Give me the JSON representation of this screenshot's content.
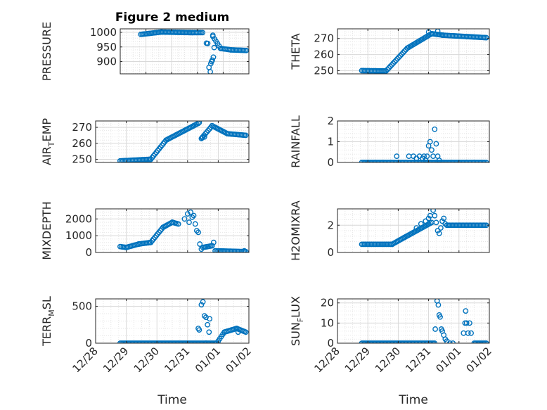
{
  "figure_title": "Figure 2 medium",
  "colors": {
    "marker": "#0072BD",
    "axis": "#262626",
    "grid": "#d9d9d9",
    "minor_grid": "#e6e6e6"
  },
  "chart_data": [
    {
      "id": "pressure",
      "type": "scatter",
      "title": "Figure 2 medium",
      "ylabel": "PRESSURE",
      "ylabel_sub": "",
      "xlabel": "",
      "xlim": [
        0,
        5
      ],
      "ylim": [
        858,
        1012
      ],
      "yticks": [
        900,
        950,
        1000
      ],
      "xticks": [
        0,
        1,
        2,
        3,
        4,
        5
      ],
      "show_xticklabels": false,
      "grid": true,
      "segments": [
        [
          0.8,
          993,
          1.6,
          1001
        ],
        [
          1.6,
          1001,
          2.8,
          999
        ],
        [
          2.8,
          999,
          3.2,
          999
        ],
        [
          3.6,
          986,
          3.9,
          945
        ],
        [
          3.9,
          945,
          4.3,
          940
        ],
        [
          4.3,
          940,
          4.9,
          938
        ]
      ],
      "points": [
        [
          3.35,
          963
        ],
        [
          3.4,
          962
        ],
        [
          3.45,
          880
        ],
        [
          3.5,
          865
        ],
        [
          3.52,
          893
        ],
        [
          3.55,
          900
        ],
        [
          3.58,
          905
        ],
        [
          3.62,
          915
        ],
        [
          3.65,
          948
        ],
        [
          3.6,
          990
        ]
      ]
    },
    {
      "id": "theta",
      "type": "scatter",
      "ylabel": "THETA",
      "ylabel_sub": "",
      "xlabel": "",
      "xlim": [
        0,
        5
      ],
      "ylim": [
        248,
        276
      ],
      "yticks": [
        250,
        260,
        270
      ],
      "xticks": [
        0,
        1,
        2,
        3,
        4,
        5
      ],
      "show_xticklabels": false,
      "grid": true,
      "segments": [
        [
          0.8,
          250,
          1.6,
          249.8
        ],
        [
          1.6,
          249.8,
          2.3,
          264
        ],
        [
          2.3,
          264,
          3.1,
          273
        ],
        [
          3.1,
          273,
          3.5,
          272
        ],
        [
          3.5,
          272,
          4.9,
          270.5
        ]
      ],
      "points": [
        [
          3.0,
          274
        ],
        [
          3.3,
          274.5
        ],
        [
          3.45,
          272
        ]
      ]
    },
    {
      "id": "air-temp",
      "type": "scatter",
      "ylabel": "AIR",
      "ylabel_sub": "T",
      "ylabel_suffix": "EMP",
      "xlabel": "",
      "xlim": [
        0,
        5
      ],
      "ylim": [
        248,
        274
      ],
      "yticks": [
        250,
        260,
        270
      ],
      "xticks": [
        0,
        1,
        2,
        3,
        4,
        5
      ],
      "show_xticklabels": false,
      "grid": true,
      "segments": [
        [
          0.8,
          249,
          1.8,
          250
        ],
        [
          1.8,
          250,
          2.3,
          262
        ],
        [
          2.3,
          262,
          3.2,
          271
        ],
        [
          3.2,
          271,
          3.35,
          272.5
        ],
        [
          3.45,
          263,
          3.8,
          271
        ],
        [
          3.8,
          271,
          4.3,
          266
        ],
        [
          4.3,
          266,
          4.9,
          265
        ]
      ],
      "points": [
        [
          3.38,
          273
        ],
        [
          3.48,
          263.5
        ],
        [
          3.55,
          264
        ]
      ]
    },
    {
      "id": "rainfall",
      "type": "scatter",
      "ylabel": "RAINFALL",
      "ylabel_sub": "",
      "xlabel": "",
      "xlim": [
        0,
        5
      ],
      "ylim": [
        0,
        2
      ],
      "yticks": [
        0,
        1,
        2
      ],
      "xticks": [
        0,
        1,
        2,
        3,
        4,
        5
      ],
      "show_xticklabels": false,
      "grid": true,
      "segments": [
        [
          0.8,
          0,
          4.9,
          0
        ]
      ],
      "points": [
        [
          1.95,
          0.3
        ],
        [
          2.35,
          0.3
        ],
        [
          2.5,
          0.3
        ],
        [
          2.6,
          0.2
        ],
        [
          2.7,
          0.3
        ],
        [
          2.8,
          0.2
        ],
        [
          2.85,
          0.3
        ],
        [
          2.9,
          0.1
        ],
        [
          2.95,
          0.3
        ],
        [
          3.0,
          0.8
        ],
        [
          3.05,
          1.0
        ],
        [
          3.1,
          0.6
        ],
        [
          3.15,
          0.3
        ],
        [
          3.2,
          1.6
        ],
        [
          3.25,
          0.9
        ],
        [
          3.3,
          0.3
        ],
        [
          3.35,
          0.1
        ]
      ]
    },
    {
      "id": "mixdepth",
      "type": "scatter",
      "ylabel": "MIXDEPTH",
      "ylabel_sub": "",
      "xlabel": "",
      "xlim": [
        0,
        5
      ],
      "ylim": [
        0,
        2600
      ],
      "yticks": [
        0,
        1000,
        2000
      ],
      "xticks": [
        0,
        1,
        2,
        3,
        4,
        5
      ],
      "show_xticklabels": false,
      "grid": true,
      "segments": [
        [
          0.8,
          350,
          1.0,
          300
        ],
        [
          1.0,
          300,
          1.4,
          500
        ],
        [
          1.4,
          500,
          1.8,
          600
        ],
        [
          1.8,
          600,
          2.2,
          1500
        ],
        [
          2.2,
          1500,
          2.5,
          1800
        ],
        [
          2.5,
          1800,
          2.7,
          1700
        ],
        [
          3.5,
          300,
          3.8,
          400
        ],
        [
          3.9,
          100,
          4.9,
          50
        ]
      ],
      "points": [
        [
          2.9,
          2000
        ],
        [
          3.0,
          2300
        ],
        [
          3.05,
          1800
        ],
        [
          3.1,
          2400
        ],
        [
          3.15,
          2100
        ],
        [
          3.2,
          2200
        ],
        [
          3.25,
          1700
        ],
        [
          3.3,
          1300
        ],
        [
          3.35,
          1200
        ],
        [
          3.4,
          500
        ],
        [
          3.45,
          200
        ],
        [
          3.85,
          600
        ],
        [
          4.85,
          100
        ]
      ]
    },
    {
      "id": "h2omixra",
      "type": "scatter",
      "ylabel": "H2OMIXRA",
      "ylabel_sub": "",
      "xlabel": "",
      "xlim": [
        0,
        5
      ],
      "ylim": [
        0,
        3.2
      ],
      "yticks": [
        0,
        2
      ],
      "xticks": [
        0,
        1,
        2,
        3,
        4,
        5
      ],
      "show_xticklabels": false,
      "grid": true,
      "segments": [
        [
          0.8,
          0.6,
          1.8,
          0.6
        ],
        [
          1.8,
          0.6,
          2.2,
          1.1
        ],
        [
          2.2,
          1.1,
          3.1,
          2.2
        ],
        [
          3.6,
          2.0,
          4.9,
          2.0
        ]
      ],
      "points": [
        [
          2.6,
          1.8
        ],
        [
          2.75,
          2.1
        ],
        [
          2.9,
          2.3
        ],
        [
          3.0,
          2.5
        ],
        [
          3.05,
          2.7
        ],
        [
          3.15,
          3.1
        ],
        [
          3.2,
          2.7
        ],
        [
          3.25,
          2.2
        ],
        [
          3.3,
          1.6
        ],
        [
          3.35,
          1.4
        ],
        [
          3.4,
          1.8
        ],
        [
          3.45,
          2.3
        ],
        [
          3.5,
          2.5
        ],
        [
          3.55,
          2.1
        ]
      ]
    },
    {
      "id": "terr-msl",
      "type": "scatter",
      "ylabel": "TERR",
      "ylabel_sub": "M",
      "ylabel_suffix": "SL",
      "xlabel": "Time",
      "xlim": [
        0,
        5
      ],
      "ylim": [
        0,
        600
      ],
      "yticks": [
        0,
        500
      ],
      "xticks": [
        0,
        1,
        2,
        3,
        4,
        5
      ],
      "xticklabels": [
        "12/28",
        "12/29",
        "12/30",
        "12/31",
        "01/01",
        "01/02"
      ],
      "show_xticklabels": true,
      "grid": true,
      "segments": [
        [
          0.8,
          0,
          3.6,
          0
        ],
        [
          3.6,
          0,
          3.95,
          0
        ],
        [
          3.95,
          0,
          4.2,
          150
        ],
        [
          4.2,
          150,
          4.6,
          200
        ],
        [
          4.6,
          200,
          4.9,
          150
        ]
      ],
      "points": [
        [
          3.35,
          200
        ],
        [
          3.38,
          180
        ],
        [
          3.45,
          520
        ],
        [
          3.5,
          560
        ],
        [
          3.55,
          370
        ],
        [
          3.6,
          350
        ],
        [
          3.65,
          250
        ],
        [
          3.7,
          150
        ],
        [
          3.72,
          330
        ],
        [
          4.65,
          150
        ]
      ]
    },
    {
      "id": "sun-flux",
      "type": "scatter",
      "ylabel": "SUN",
      "ylabel_sub": "F",
      "ylabel_suffix": "LUX",
      "xlabel": "Time",
      "xlim": [
        0,
        5
      ],
      "ylim": [
        0,
        22
      ],
      "yticks": [
        0,
        10,
        20
      ],
      "xticks": [
        0,
        1,
        2,
        3,
        4,
        5
      ],
      "xticklabels": [
        "12/28",
        "12/29",
        "12/30",
        "12/31",
        "01/01",
        "01/02"
      ],
      "show_xticklabels": true,
      "grid": true,
      "segments": [
        [
          0.8,
          0,
          3.2,
          0
        ],
        [
          4.5,
          0,
          4.9,
          0
        ]
      ],
      "points": [
        [
          3.22,
          7
        ],
        [
          3.28,
          21
        ],
        [
          3.32,
          19
        ],
        [
          3.35,
          14
        ],
        [
          3.38,
          13
        ],
        [
          3.42,
          7
        ],
        [
          3.45,
          6
        ],
        [
          3.5,
          4
        ],
        [
          3.55,
          2
        ],
        [
          3.6,
          1
        ],
        [
          3.7,
          0
        ],
        [
          3.8,
          0
        ],
        [
          4.15,
          5
        ],
        [
          4.2,
          10
        ],
        [
          4.22,
          16
        ],
        [
          4.25,
          10
        ],
        [
          4.3,
          5
        ],
        [
          4.35,
          10
        ],
        [
          4.4,
          5
        ]
      ]
    }
  ]
}
